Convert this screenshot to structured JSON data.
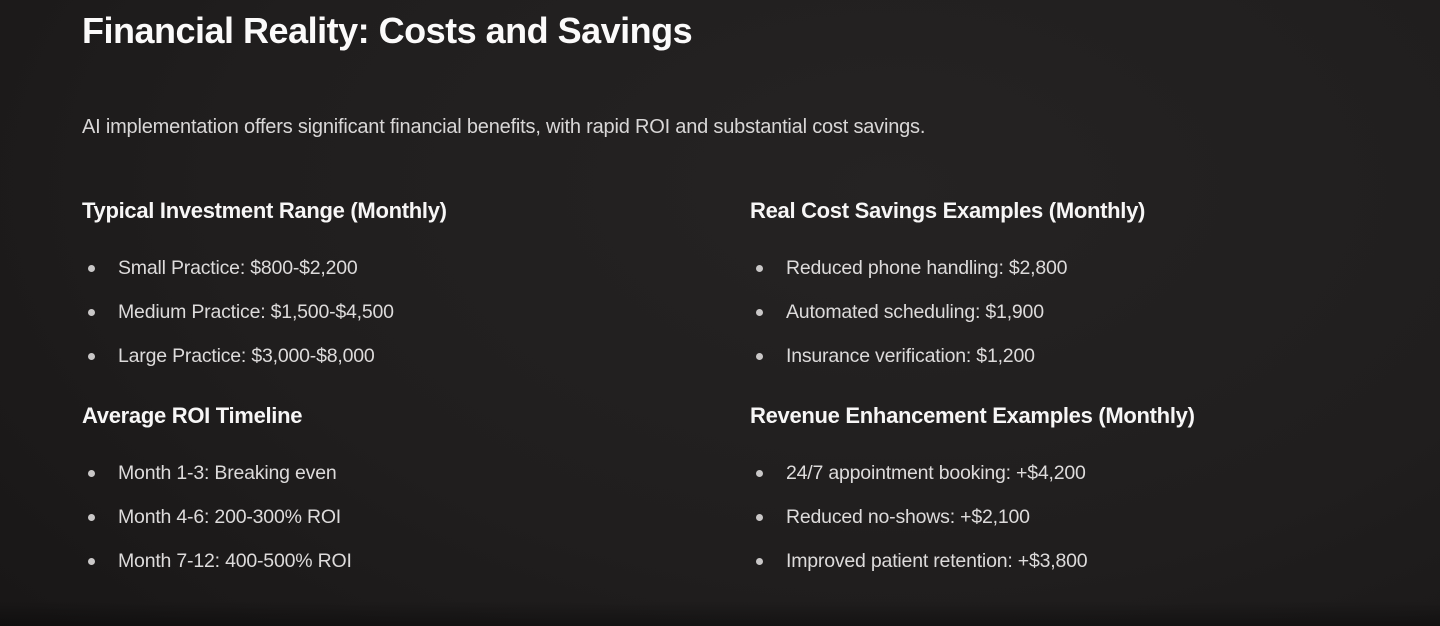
{
  "page": {
    "title": "Financial Reality: Costs and Savings",
    "subtitle": "AI implementation offers significant financial benefits, with rapid ROI and substantial cost savings."
  },
  "columns": {
    "left": {
      "sections": [
        {
          "heading": "Typical Investment Range (Monthly)",
          "items": [
            "Small Practice: $800-$2,200",
            "Medium Practice: $1,500-$4,500",
            "Large Practice: $3,000-$8,000"
          ]
        },
        {
          "heading": "Average ROI Timeline",
          "items": [
            "Month 1-3: Breaking even",
            "Month 4-6: 200-300% ROI",
            "Month 7-12: 400-500% ROI"
          ]
        }
      ]
    },
    "right": {
      "sections": [
        {
          "heading": "Real Cost Savings Examples (Monthly)",
          "items": [
            "Reduced phone handling: $2,800",
            "Automated scheduling: $1,900",
            "Insurance verification: $1,200"
          ]
        },
        {
          "heading": "Revenue Enhancement Examples (Monthly)",
          "items": [
            "24/7 appointment booking: +$4,200",
            "Reduced no-shows: +$2,100",
            "Improved patient retention: +$3,800"
          ]
        }
      ]
    }
  },
  "colors": {
    "background": "#201e1e",
    "heading_text": "#f7f6f6",
    "body_text": "#dddbdb",
    "bullet_dot": "#c9c7c7"
  }
}
